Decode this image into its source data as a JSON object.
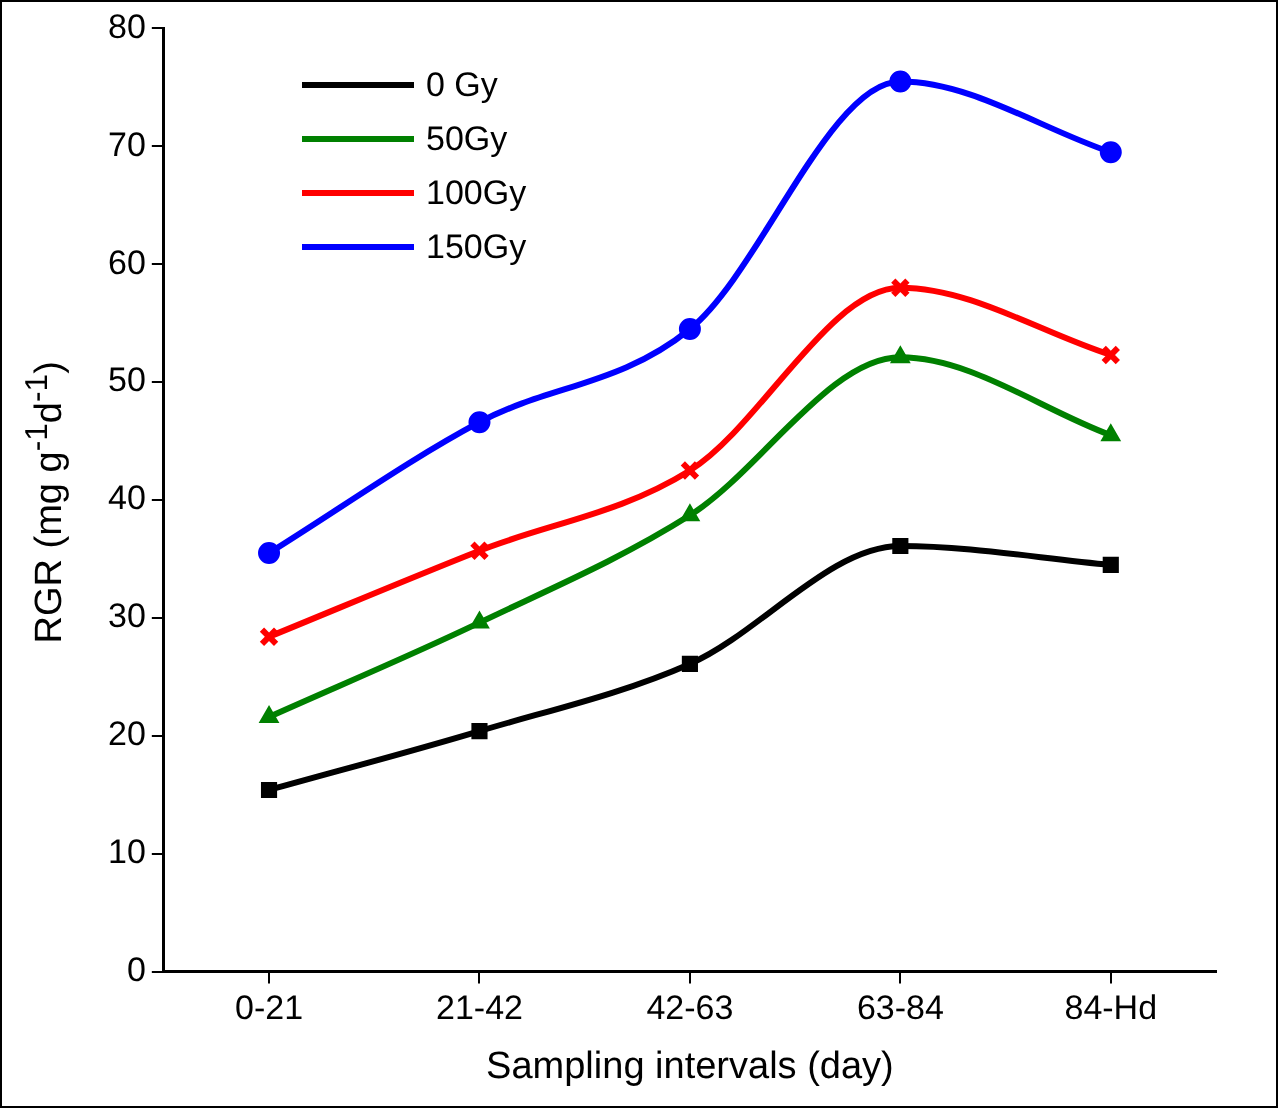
{
  "chart_data": {
    "type": "line",
    "xlabel": "Sampling intervals (day)",
    "ylabel": "RGR (mg g$^{-1}$d$^{-1}$)",
    "categories": [
      "0-21",
      "21-42",
      "42-63",
      "63-84",
      "84-Hd"
    ],
    "ylim": [
      0,
      80
    ],
    "yticks": [
      0,
      10,
      20,
      30,
      40,
      50,
      60,
      70,
      80
    ],
    "grid": false,
    "legend": "top left",
    "line_style": "solid",
    "series": [
      {
        "name": "0 Gy",
        "color": "#000000",
        "marker": "square",
        "values": [
          15.4,
          20.4,
          26.1,
          36.1,
          34.5
        ]
      },
      {
        "name": "50Gy",
        "color": "#008000",
        "marker": "triangle",
        "values": [
          21.6,
          29.6,
          38.7,
          52.1,
          45.5
        ]
      },
      {
        "name": "100Gy",
        "color": "#ff0000",
        "marker": "cross",
        "values": [
          28.4,
          35.7,
          42.5,
          58.0,
          52.3
        ]
      },
      {
        "name": "150Gy",
        "color": "#0000ff",
        "marker": "circle",
        "values": [
          35.5,
          46.6,
          54.5,
          75.5,
          69.5
        ]
      }
    ]
  }
}
